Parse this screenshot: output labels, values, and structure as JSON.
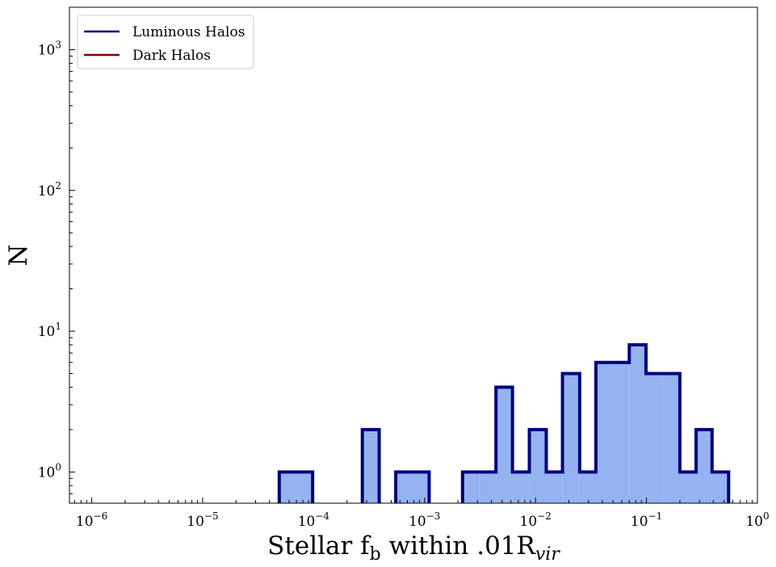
{
  "chart_data": {
    "type": "histogram",
    "xscale": "log",
    "yscale": "log",
    "xlim": [
      6.3e-07,
      1.0
    ],
    "ylim": [
      0.6,
      2000
    ],
    "grid": false,
    "legend_position": "top-left",
    "xlabel": {
      "main": "Stellar f",
      "sub1": "b",
      "mid": " within .01R",
      "sub2": "vir"
    },
    "ylabel": "N",
    "x_ticks": [
      {
        "value": 1e-06,
        "base": "10",
        "exp": "−6"
      },
      {
        "value": 1e-05,
        "base": "10",
        "exp": "−5"
      },
      {
        "value": 0.0001,
        "base": "10",
        "exp": "−4"
      },
      {
        "value": 0.001,
        "base": "10",
        "exp": "−3"
      },
      {
        "value": 0.01,
        "base": "10",
        "exp": "−2"
      },
      {
        "value": 0.1,
        "base": "10",
        "exp": "−1"
      },
      {
        "value": 1,
        "base": "10",
        "exp": "0"
      }
    ],
    "y_ticks": [
      {
        "value": 1,
        "base": "10",
        "exp": "0"
      },
      {
        "value": 10,
        "base": "10",
        "exp": "1"
      },
      {
        "value": 100,
        "base": "10",
        "exp": "2"
      },
      {
        "value": 1000,
        "base": "10",
        "exp": "3"
      }
    ],
    "legend": [
      {
        "name": "Luminous Halos",
        "color": "#00007f"
      },
      {
        "name": "Dark Halos",
        "color": "#7f0000"
      }
    ],
    "series": [
      {
        "name": "Luminous Halos",
        "color": "#00007f",
        "fill": "#94b3f0",
        "bins": [
          [
            4.9e-05,
            9.8e-05,
            1
          ],
          [
            0.000275,
            0.00039,
            2
          ],
          [
            0.00055,
            0.00078,
            1
          ],
          [
            0.00078,
            0.0011,
            1
          ],
          [
            0.0022,
            0.0031,
            1
          ],
          [
            0.0031,
            0.0044,
            1
          ],
          [
            0.0044,
            0.0062,
            4
          ],
          [
            0.0062,
            0.0088,
            1
          ],
          [
            0.0088,
            0.0125,
            2
          ],
          [
            0.0125,
            0.0175,
            1
          ],
          [
            0.0175,
            0.025,
            5
          ],
          [
            0.025,
            0.035,
            1
          ],
          [
            0.035,
            0.05,
            6
          ],
          [
            0.05,
            0.07,
            6
          ],
          [
            0.07,
            0.099,
            8
          ],
          [
            0.099,
            0.14,
            5
          ],
          [
            0.14,
            0.2,
            5
          ],
          [
            0.2,
            0.28,
            1
          ],
          [
            0.28,
            0.39,
            2
          ],
          [
            0.39,
            0.55,
            1
          ]
        ]
      },
      {
        "name": "Dark Halos",
        "color": "#7f0000",
        "bins": []
      }
    ]
  }
}
